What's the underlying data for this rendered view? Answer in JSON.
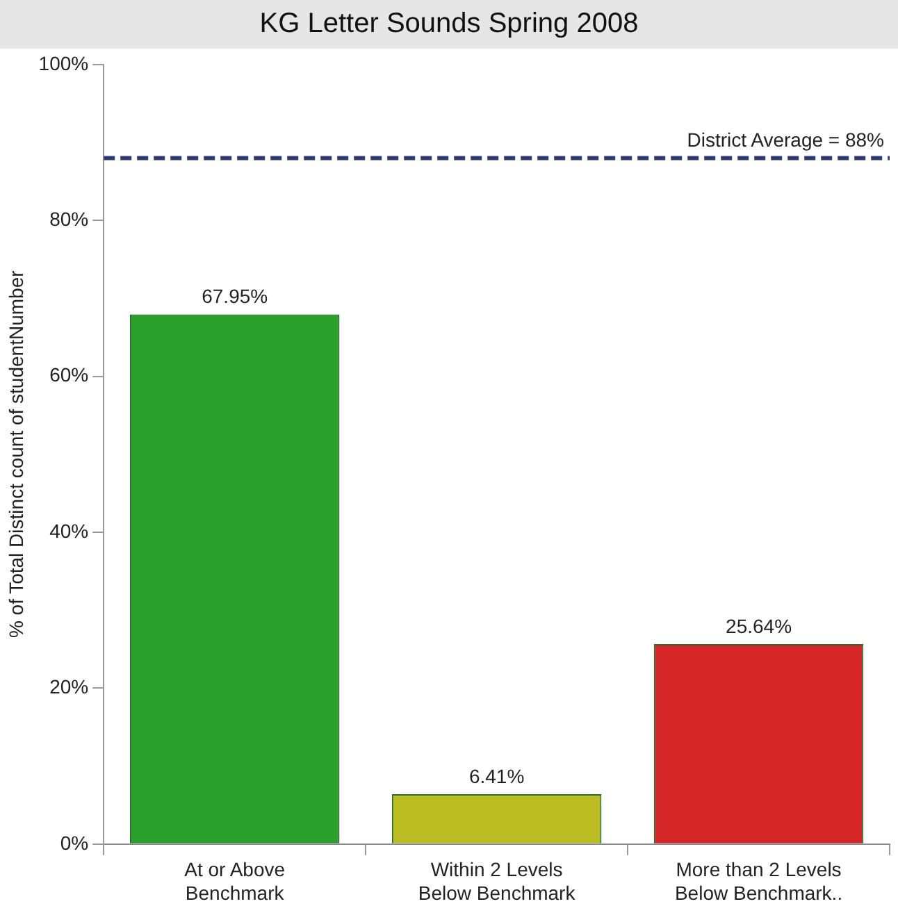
{
  "chart_data": {
    "type": "bar",
    "title": "KG Letter Sounds Spring 2008",
    "ylabel": "% of Total Distinct count of studentNumber",
    "categories": [
      "At or Above\nBenchmark",
      "Within 2 Levels\nBelow Benchmark",
      "More than 2 Levels\nBelow Benchmark.."
    ],
    "values": [
      67.95,
      6.41,
      25.64
    ],
    "colors": [
      "#2ca02c",
      "#bcbd22",
      "#d62728"
    ],
    "value_labels": [
      "67.95%",
      "6.41%",
      "25.64%"
    ],
    "ylim": [
      0,
      100
    ],
    "yticks": [
      {
        "value": 0,
        "label": "0%"
      },
      {
        "value": 20,
        "label": "20%"
      },
      {
        "value": 40,
        "label": "40%"
      },
      {
        "value": 60,
        "label": "60%"
      },
      {
        "value": 80,
        "label": "80%"
      },
      {
        "value": 100,
        "label": "100%"
      }
    ],
    "ref_lines": [
      {
        "axis": "y",
        "value": 88,
        "label": "District Average = 88%",
        "color": "#2f3b73",
        "line_style": "dashed"
      }
    ],
    "grid": false,
    "legend": false
  }
}
